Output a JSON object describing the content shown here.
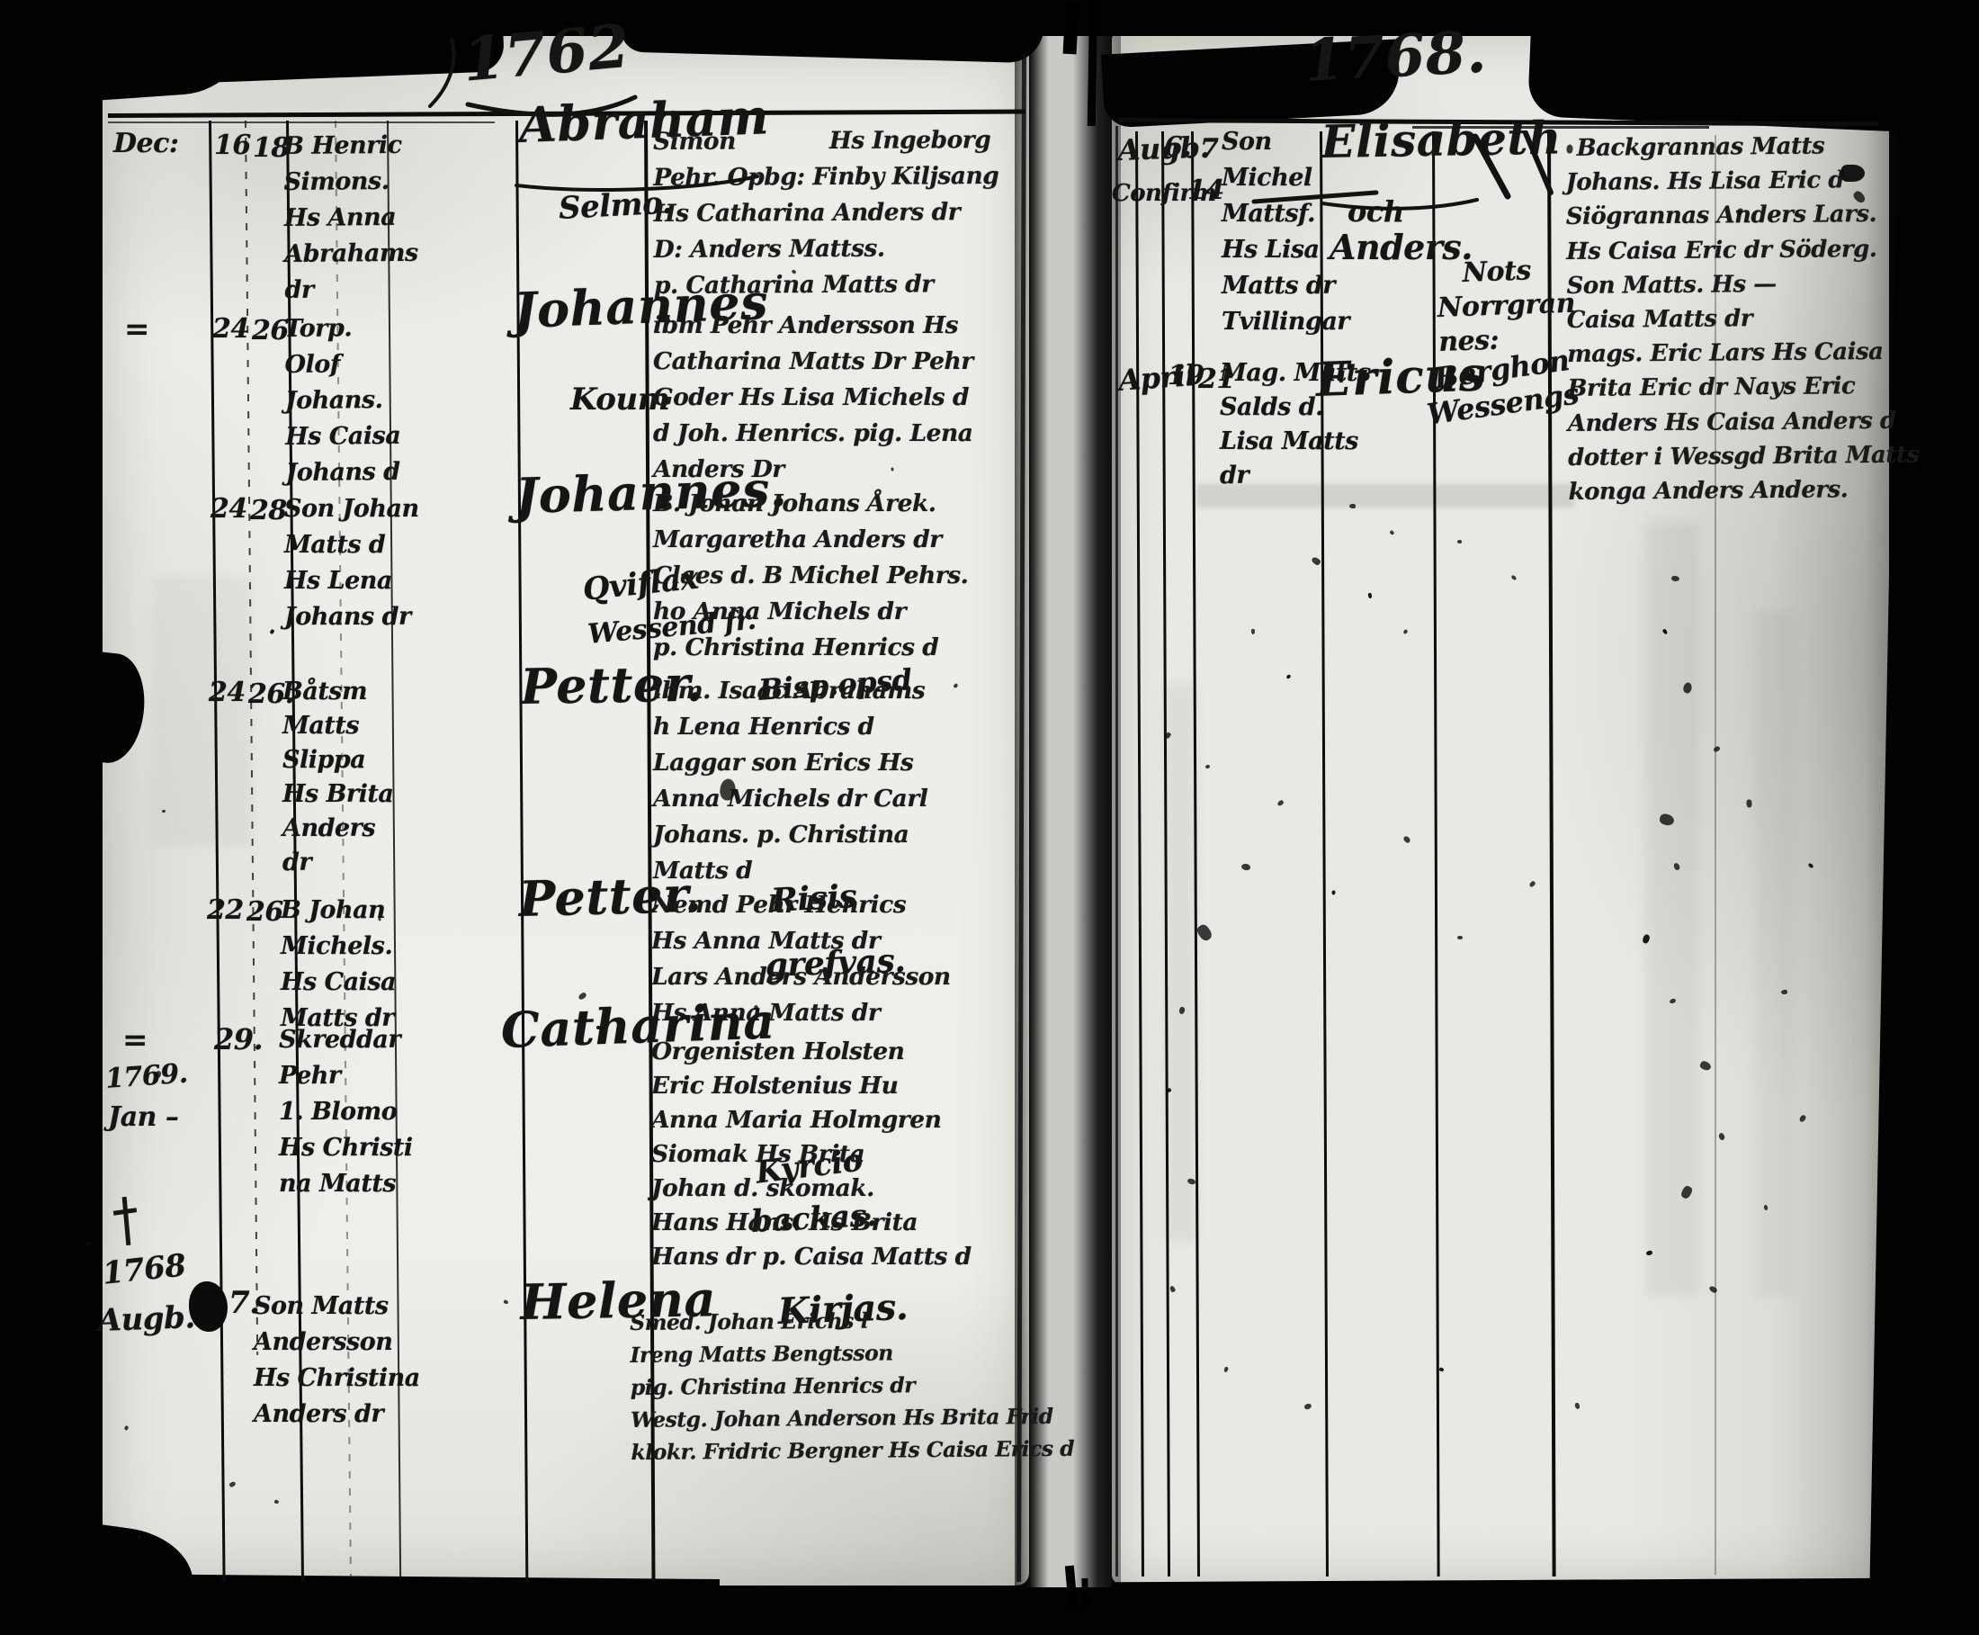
{
  "left_page": {
    "year_title": "1762",
    "entries": [
      {
        "month": "Dec:",
        "d1": "16",
        "d2": "18",
        "parents": "B Henric\nSimons.\nHs Anna\nAbrahams\ndr",
        "name": "Abraham",
        "place": "Selmo.",
        "witnesses": "Simon    Hs Ingeborg\nPehr. Opbg: Finby Kiljsang\nHs Catharina Anders dr\nD: Anders Mattss.\np. Catharina Matts dr"
      },
      {
        "sign": "=",
        "d1": "24",
        "d2": "26",
        "parents": "Torp.\nOlof\nJohans.\nHs Caisa\nJohans d",
        "name": "Johannes",
        "place": "Koum",
        "witnesses": "ibm Pehr Andersson Hs\nCatharina Matts Dr Pehr\nGoder Hs Lisa Michels d\nd Joh. Henrics. pig. Lena\nAnders Dr"
      },
      {
        "d1": "24",
        "d2": "28",
        "parents": "Son Johan\nMatts d\nHs Lena\nJohans dr",
        "name": "Johannes.",
        "place": "Qviflax",
        "place2": "Wessend fr.",
        "witnesses": "B. Johan Johans Årek.\nMargaretha Anders dr\nClaes d. B Michel Pehrs.\nho Anna Michels dr\np. Christina Henrics d"
      },
      {
        "d1": "24",
        "d2": "26.",
        "parents": "Båtsm\nMatts\nSlippa\nHs Brita\nAnders\ndr",
        "name": "Petter.",
        "place": "Bisp.opsd",
        "witnesses": "ibm. Isaac Abrahams\nh Lena Henrics d\nLaggar son Erics Hs\nAnna Michels dr Carl\nJohans. p. Christina\nMatts d"
      },
      {
        "d1": "22",
        "d2": "26",
        "parents": "B Johan\nMichels.\nHs Caisa\nMatts dr",
        "name": "Petter.",
        "place": "Risis",
        "place2": "grefvas.",
        "witnesses": "Nemd Pehr Henrics\nHs Anna Matts dr\nLars Anders Andersson\nHs Anna Matts dr"
      },
      {
        "sign": "=",
        "d1": "29.",
        "year": "1769.",
        "month": "Jan –",
        "parents": "Skreddar\nPehr\n1. Blomo\nHs Christi\nna Matts",
        "name": "Catharina",
        "place": "Kyrcio",
        "place2": "backas.",
        "witnesses": "Orgenisten Holsten\nEric Holstenius Hu\nAnna Maria Holmgren\nSiomak Hs Brita\nJohan d. skomak.\nHans Hans. Hs Brita\nHans dr p. Caisa Matts d"
      },
      {
        "year": "1768",
        "month": "Augb.",
        "d1": "5",
        "d2": "7.",
        "parents": "Son Matts\nAndersson\nHs Christina\nAnders dr",
        "name": "Helena",
        "place": "Kirjas.",
        "witnesses": "Smed. Johan Erichs l\nIreng Matts Bengtsson\npig. Christina Henrics dr\nWestg. Johan Anderson Hs Brita Frid\nklokr. Fridric Bergner Hs Caisa Erics d"
      }
    ]
  },
  "right_page": {
    "year_title": "1768.",
    "entries": [
      {
        "month": "Augb.",
        "month2": "Confirm",
        "d1": "6.",
        "d2": "7",
        "d3": "14",
        "parents": "Son\nMichel\nMattsf.\nHs Lisa\nMatts dr\nTvillingar",
        "name": "Elisabeth",
        "name2": "och",
        "name3": "Anders.",
        "note": "  Nots\nNorrgran\nnes:",
        "witnesses": " Backgrannas Matts\nJohans. Hs Lisa Eric d\nSiögrannas Anders Lars.\nHs Caisa Eric dr Söderg.\nSon Matts. Hs —\nCaisa Matts dr\nmags. Eric Lars Hs Caisa\nBrita Eric dr Nays Eric\nAnders Hs Caisa Anders d\ndotter i Wessgd Brita Matts\nkonga Anders Anders."
      },
      {
        "month": "April",
        "d1": "19",
        "d2": "21",
        "parents": "Mag. Matts\nSalds d.\nLisa Matts\ndr",
        "name": "Ericus",
        "note": "Berghon",
        "note2": "Wessengs"
      }
    ]
  }
}
